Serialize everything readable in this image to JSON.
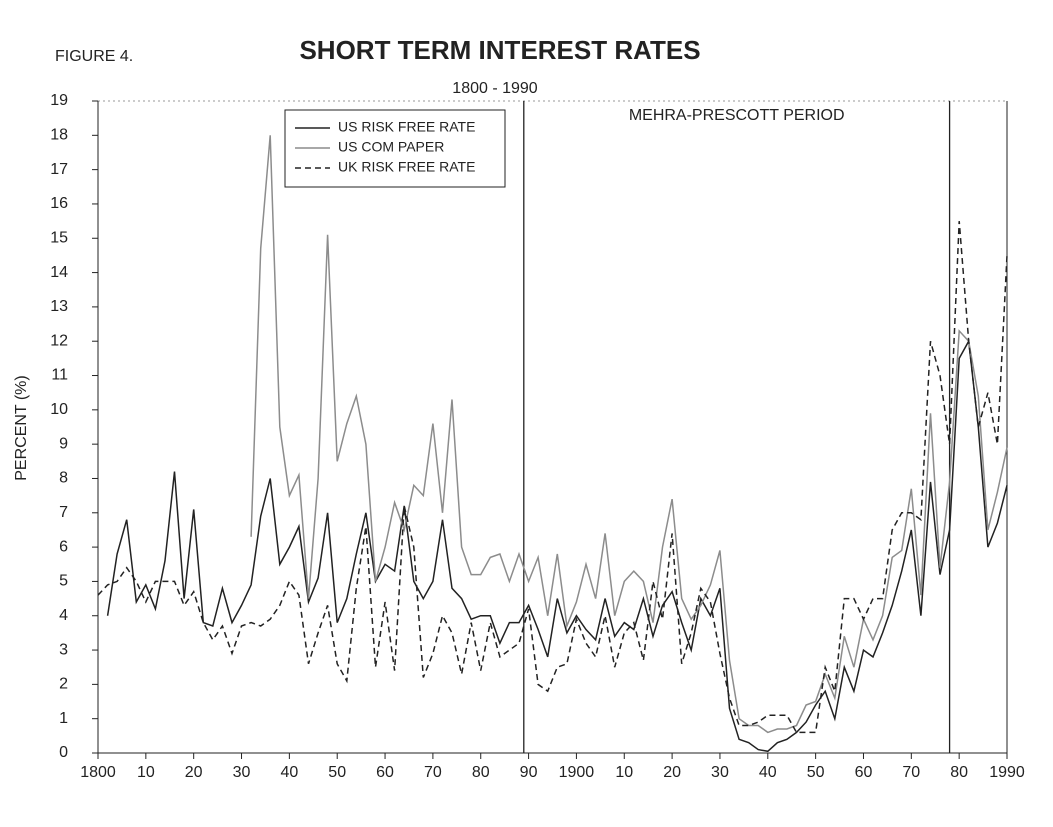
{
  "chart_data": {
    "type": "line",
    "figure_label": "FIGURE 4.",
    "title": "SHORT TERM INTEREST RATES",
    "subtitle": "1800 - 1990",
    "y_label": "PERCENT (%)",
    "period": {
      "label": "MEHRA-PRESCOTT PERIOD",
      "start": 1889,
      "end": 1978
    },
    "xlim": [
      1800,
      1990
    ],
    "ylim": [
      0,
      19
    ],
    "xticks": [
      1800,
      {
        "value": 1810,
        "label": "10"
      },
      {
        "value": 1820,
        "label": "20"
      },
      {
        "value": 1830,
        "label": "30"
      },
      {
        "value": 1840,
        "label": "40"
      },
      {
        "value": 1850,
        "label": "50"
      },
      {
        "value": 1860,
        "label": "60"
      },
      {
        "value": 1870,
        "label": "70"
      },
      {
        "value": 1880,
        "label": "80"
      },
      {
        "value": 1890,
        "label": "90"
      },
      1900,
      {
        "value": 1910,
        "label": "10"
      },
      {
        "value": 1920,
        "label": "20"
      },
      {
        "value": 1930,
        "label": "30"
      },
      {
        "value": 1940,
        "label": "40"
      },
      {
        "value": 1950,
        "label": "50"
      },
      {
        "value": 1960,
        "label": "60"
      },
      {
        "value": 1970,
        "label": "70"
      },
      {
        "value": 1980,
        "label": "80"
      },
      1990
    ],
    "yticks": [
      0,
      1,
      2,
      3,
      4,
      5,
      6,
      7,
      8,
      9,
      10,
      11,
      12,
      13,
      14,
      15,
      16,
      17,
      18,
      19
    ],
    "x": [
      1800,
      1802,
      1804,
      1806,
      1808,
      1810,
      1812,
      1814,
      1816,
      1818,
      1820,
      1822,
      1824,
      1826,
      1828,
      1830,
      1832,
      1834,
      1836,
      1838,
      1840,
      1842,
      1844,
      1846,
      1848,
      1850,
      1852,
      1854,
      1856,
      1858,
      1860,
      1862,
      1864,
      1866,
      1868,
      1870,
      1872,
      1874,
      1876,
      1878,
      1880,
      1882,
      1884,
      1886,
      1888,
      1890,
      1892,
      1894,
      1896,
      1898,
      1900,
      1902,
      1904,
      1906,
      1908,
      1910,
      1912,
      1914,
      1916,
      1918,
      1920,
      1922,
      1924,
      1926,
      1928,
      1930,
      1932,
      1934,
      1936,
      1938,
      1940,
      1942,
      1944,
      1946,
      1948,
      1950,
      1952,
      1954,
      1956,
      1958,
      1960,
      1962,
      1964,
      1966,
      1968,
      1970,
      1972,
      1974,
      1976,
      1978,
      1980,
      1982,
      1984,
      1986,
      1988,
      1990
    ],
    "series": [
      {
        "name": "US RISK FREE RATE",
        "color": "#222222",
        "style": "solid",
        "values": [
          null,
          4.0,
          5.8,
          6.8,
          4.4,
          4.9,
          4.2,
          5.6,
          8.2,
          4.5,
          7.1,
          3.8,
          3.7,
          4.8,
          3.8,
          4.3,
          4.9,
          6.9,
          8.0,
          5.5,
          6.0,
          6.6,
          4.4,
          5.1,
          7.0,
          3.8,
          4.5,
          5.8,
          7.0,
          5.0,
          5.5,
          5.3,
          7.2,
          5.0,
          4.5,
          5.0,
          6.8,
          4.8,
          4.5,
          3.9,
          4.0,
          4.0,
          3.2,
          3.8,
          3.8,
          4.3,
          3.6,
          2.8,
          4.5,
          3.5,
          4.0,
          3.6,
          3.3,
          4.5,
          3.4,
          3.8,
          3.6,
          4.5,
          3.4,
          4.3,
          4.7,
          3.8,
          3.0,
          4.5,
          4.0,
          4.8,
          1.3,
          0.4,
          0.3,
          0.1,
          0.05,
          0.3,
          0.4,
          0.6,
          0.9,
          1.4,
          1.8,
          1.0,
          2.5,
          1.8,
          3.0,
          2.8,
          3.5,
          4.3,
          5.3,
          6.5,
          4.0,
          7.9,
          5.2,
          6.5,
          11.5,
          12.0,
          9.5,
          6.0,
          6.7,
          7.8
        ]
      },
      {
        "name": "US COM PAPER",
        "color": "#8c8c8c",
        "style": "solid",
        "values": [
          null,
          null,
          null,
          null,
          null,
          null,
          null,
          null,
          null,
          null,
          null,
          null,
          null,
          null,
          null,
          null,
          6.3,
          14.7,
          18.0,
          9.5,
          7.5,
          8.1,
          4.5,
          8.0,
          15.1,
          8.5,
          9.6,
          10.4,
          9.0,
          5.0,
          6.0,
          7.3,
          6.5,
          7.8,
          7.5,
          9.6,
          7.0,
          10.3,
          6.0,
          5.2,
          5.2,
          5.7,
          5.8,
          5.0,
          5.8,
          5.0,
          5.7,
          4.0,
          5.8,
          3.7,
          4.4,
          5.5,
          4.5,
          6.4,
          4.0,
          5.0,
          5.3,
          5.0,
          3.8,
          6.0,
          7.4,
          4.5,
          3.9,
          4.3,
          4.9,
          5.9,
          2.7,
          1.0,
          0.8,
          0.8,
          0.6,
          0.7,
          0.7,
          0.8,
          1.4,
          1.5,
          2.3,
          1.6,
          3.4,
          2.5,
          3.9,
          3.3,
          4.0,
          5.7,
          5.9,
          7.7,
          4.6,
          9.9,
          5.4,
          7.9,
          12.3,
          12.0,
          10.4,
          6.5,
          7.6,
          8.9
        ]
      },
      {
        "name": "UK RISK FREE RATE",
        "color": "#222222",
        "style": "dashed",
        "values": [
          4.6,
          4.9,
          5.0,
          5.4,
          5.0,
          4.4,
          5.0,
          5.0,
          5.0,
          4.3,
          4.7,
          3.8,
          3.3,
          3.7,
          2.9,
          3.7,
          3.8,
          3.7,
          3.9,
          4.3,
          5.0,
          4.6,
          2.6,
          3.5,
          4.3,
          2.6,
          2.1,
          4.8,
          6.6,
          2.5,
          4.4,
          2.4,
          7.2,
          6.0,
          2.2,
          2.9,
          4.0,
          3.5,
          2.3,
          3.8,
          2.4,
          3.8,
          2.8,
          3.0,
          3.2,
          4.2,
          2.0,
          1.8,
          2.5,
          2.6,
          3.9,
          3.2,
          2.8,
          4.0,
          2.5,
          3.5,
          3.8,
          2.7,
          5.0,
          3.9,
          6.4,
          2.6,
          3.5,
          4.8,
          4.4,
          2.9,
          1.6,
          0.8,
          0.8,
          0.9,
          1.1,
          1.1,
          1.1,
          0.6,
          0.6,
          0.6,
          2.5,
          1.8,
          4.5,
          4.5,
          3.9,
          4.5,
          4.5,
          6.5,
          7.0,
          7.0,
          6.8,
          12.0,
          11.0,
          9.0,
          15.5,
          12.0,
          9.5,
          10.5,
          9.0,
          14.5
        ]
      }
    ]
  }
}
